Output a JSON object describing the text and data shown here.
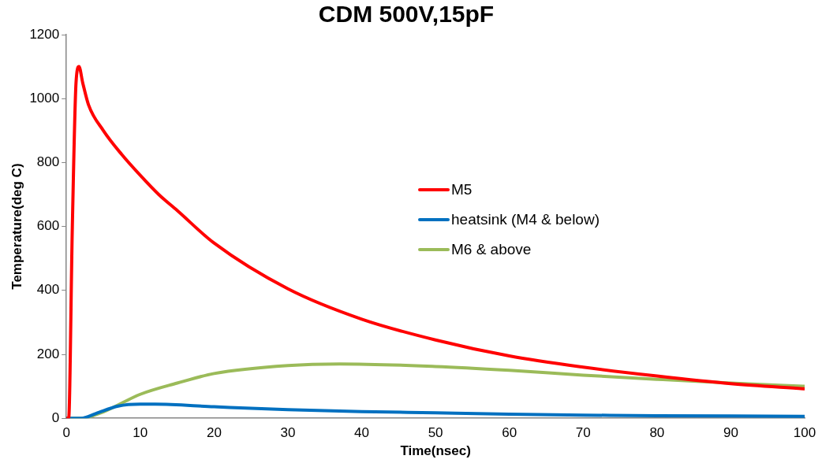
{
  "chart_data": {
    "type": "line",
    "title": "CDM 500V,15pF",
    "xlabel": "Time(nsec)",
    "ylabel": "Temperature(deg C)",
    "xlim": [
      0,
      100
    ],
    "xticks": [
      0,
      10,
      20,
      30,
      40,
      50,
      60,
      70,
      80,
      90,
      100
    ],
    "ylim": [
      0,
      1200
    ],
    "yticks": [
      0,
      200,
      400,
      600,
      800,
      1000,
      1200
    ],
    "grid": false,
    "legend": "right",
    "marker": "none",
    "line_style": "solid",
    "series": [
      {
        "name": "M5",
        "color": "#ff0000",
        "x": [
          0,
          0.3,
          0.8,
          1.3,
          1.7,
          2.2,
          3,
          5,
          7.5,
          10,
          12.5,
          15,
          20,
          30,
          40,
          50,
          60,
          70,
          80,
          90,
          100
        ],
        "values": [
          0,
          0,
          600,
          1050,
          1100,
          1050,
          980,
          900,
          825,
          760,
          700,
          650,
          548,
          405,
          310,
          245,
          195,
          160,
          132,
          108,
          92
        ]
      },
      {
        "name": "heatsink (M4 & below)",
        "color": "#0070c0",
        "x": [
          0,
          2,
          4,
          7,
          10,
          12,
          20,
          30,
          40,
          50,
          60,
          70,
          80,
          90,
          100
        ],
        "values": [
          0,
          0,
          15,
          38,
          44,
          44,
          36,
          27,
          21,
          17,
          13,
          10,
          8,
          7,
          6
        ]
      },
      {
        "name": "M6 & above",
        "color": "#9bbb59",
        "x": [
          0,
          2,
          5,
          10,
          15,
          20,
          30,
          37,
          50,
          60,
          70,
          80,
          90,
          100
        ],
        "values": [
          0,
          0,
          20,
          75,
          110,
          140,
          165,
          170,
          162,
          150,
          135,
          122,
          110,
          100
        ]
      }
    ]
  }
}
